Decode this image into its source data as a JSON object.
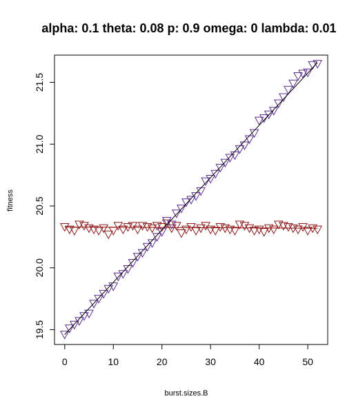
{
  "chart_data": {
    "type": "scatter",
    "title": "alpha: 0.1 theta: 0.08 p: 0.9 omega: 0 lambda: 0.01",
    "xlabel": "burst.sizes.B",
    "ylabel": "fitness",
    "xlim": [
      -2.1,
      54.1
    ],
    "ylim": [
      19.38,
      21.72
    ],
    "xticks": [
      "0",
      "10",
      "20",
      "30",
      "40",
      "50"
    ],
    "yticks": [
      "19.5",
      "20.0",
      "20.5",
      "21.0",
      "21.5"
    ],
    "grid": false,
    "marker": "down-triangle",
    "series": [
      {
        "color": "#8B1A1A",
        "fit_color": "#8B0000",
        "fit": [
          [
            0,
            20.33
          ],
          [
            52,
            20.32
          ]
        ],
        "x": [
          0,
          1,
          2,
          3,
          4,
          5,
          6,
          7,
          8,
          9,
          10,
          11,
          12,
          13,
          14,
          15,
          16,
          17,
          18,
          19,
          20,
          21,
          22,
          23,
          24,
          25,
          26,
          27,
          28,
          29,
          30,
          31,
          32,
          33,
          34,
          35,
          36,
          37,
          38,
          39,
          40,
          41,
          42,
          43,
          44,
          45,
          46,
          47,
          48,
          49,
          50,
          51,
          52
        ],
        "y": [
          20.33,
          20.31,
          20.3,
          20.35,
          20.34,
          20.32,
          20.31,
          20.3,
          20.32,
          20.27,
          20.3,
          20.34,
          20.31,
          20.33,
          20.34,
          20.31,
          20.34,
          20.33,
          20.32,
          20.34,
          20.33,
          20.36,
          20.32,
          20.34,
          20.28,
          20.31,
          20.33,
          20.3,
          20.32,
          20.34,
          20.31,
          20.3,
          20.33,
          20.32,
          20.31,
          20.3,
          20.35,
          20.34,
          20.32,
          20.3,
          20.31,
          20.29,
          20.32,
          20.31,
          20.35,
          20.34,
          20.33,
          20.32,
          20.31,
          20.33,
          20.3,
          20.32,
          20.31
        ]
      },
      {
        "color": "#5B2C8F",
        "fit_color": "#000000",
        "fit": [
          [
            0,
            19.46
          ],
          [
            52,
            21.66
          ]
        ],
        "x": [
          0,
          1,
          2,
          3,
          4,
          5,
          6,
          7,
          8,
          9,
          10,
          11,
          12,
          13,
          14,
          15,
          16,
          17,
          18,
          19,
          20,
          21,
          22,
          23,
          24,
          25,
          26,
          27,
          28,
          29,
          30,
          31,
          32,
          33,
          34,
          35,
          36,
          37,
          38,
          39,
          40,
          41,
          42,
          43,
          44,
          45,
          46,
          47,
          48,
          49,
          50,
          51,
          52
        ],
        "y": [
          19.46,
          19.51,
          19.54,
          19.57,
          19.61,
          19.63,
          19.71,
          19.75,
          19.79,
          19.83,
          19.85,
          19.93,
          19.95,
          19.99,
          20.04,
          20.09,
          20.12,
          20.17,
          20.2,
          20.25,
          20.29,
          20.38,
          20.35,
          20.44,
          20.48,
          20.53,
          20.55,
          20.58,
          20.62,
          20.7,
          20.72,
          20.76,
          20.81,
          20.85,
          20.89,
          20.91,
          20.96,
          20.99,
          21.04,
          21.09,
          21.19,
          21.21,
          21.24,
          21.27,
          21.33,
          21.38,
          21.44,
          21.49,
          21.55,
          21.57,
          21.58,
          21.64,
          21.65
        ]
      }
    ]
  }
}
